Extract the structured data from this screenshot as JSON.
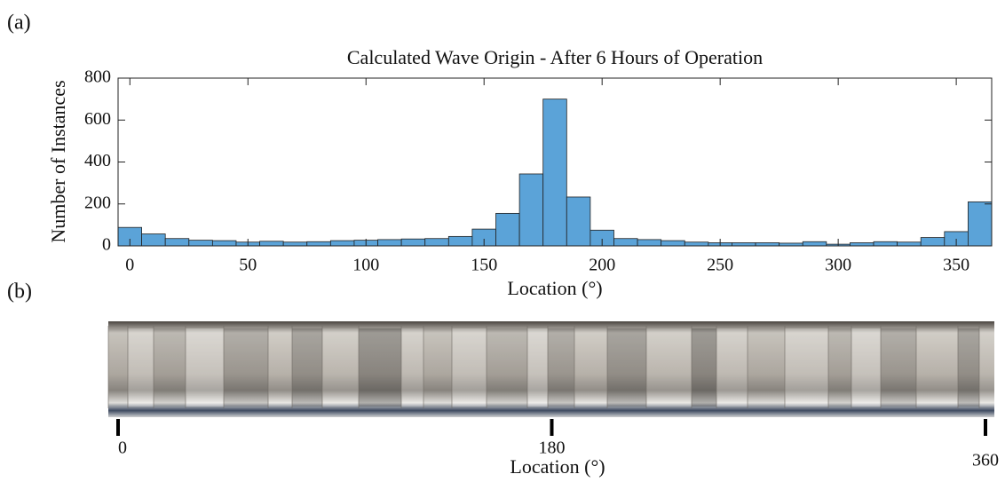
{
  "panel_labels": [
    "(a)",
    "(b)"
  ],
  "chart_data": {
    "type": "histogram",
    "title": "Calculated Wave Origin - After 6 Hours of Operation",
    "xlabel": "Location (°)",
    "ylabel": "Number of Instances",
    "bins": [
      -5,
      5,
      15,
      25,
      35,
      45,
      55,
      65,
      75,
      85,
      95,
      105,
      115,
      125,
      135,
      145,
      155,
      165,
      175,
      185,
      195,
      205,
      215,
      225,
      235,
      245,
      255,
      265,
      275,
      285,
      295,
      305,
      315,
      325,
      335,
      345,
      355,
      365
    ],
    "values": [
      88,
      57,
      35,
      27,
      25,
      18,
      22,
      18,
      20,
      25,
      27,
      30,
      33,
      35,
      45,
      80,
      155,
      343,
      700,
      233,
      75,
      35,
      30,
      25,
      18,
      15,
      15,
      15,
      13,
      20,
      8,
      15,
      20,
      18,
      40,
      68,
      210
    ],
    "color": "#5ba3d8",
    "xlim": [
      -5,
      365
    ],
    "xticks": [
      0,
      50,
      100,
      150,
      200,
      250,
      300,
      350
    ],
    "ylim": [
      0,
      800
    ],
    "yticks": [
      0,
      200,
      400,
      600,
      800
    ]
  },
  "strip": {
    "xlabel": "Location (°)",
    "xlim": [
      0,
      360
    ],
    "xticks": [
      0,
      180,
      360
    ]
  }
}
